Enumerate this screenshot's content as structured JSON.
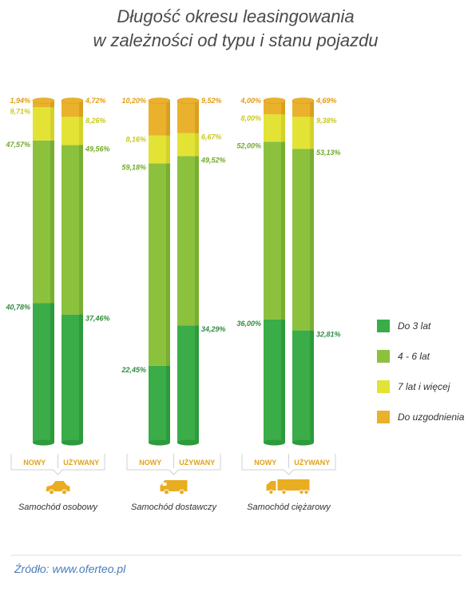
{
  "title_lines": [
    "Długość okresu leasingowania",
    "w zależności od typu i stanu pojazdu"
  ],
  "source": "Źródło: www.oferteo.pl",
  "colors": {
    "do3": "#3aac48",
    "do3_side": "#2d9a3b",
    "y46": "#8cc13e",
    "y46_side": "#78ae31",
    "y7": "#e3e335",
    "y7_side": "#d2d22a",
    "uzg": "#eab12c",
    "uzg_side": "#d99f1f",
    "pct_green": "#2e8c3c",
    "pct_light": "#6fa92a",
    "pct_yellow": "#c9c91a",
    "pct_orange": "#e39b12",
    "icon": "#e9ad22"
  },
  "chart_data": {
    "type": "bar",
    "stacked": true,
    "series": [
      {
        "name": "Do 3 lat",
        "color_key": "do3"
      },
      {
        "name": "4 - 6 lat",
        "color_key": "y46"
      },
      {
        "name": "7 lat i więcej",
        "color_key": "y7"
      },
      {
        "name": "Do uzgodnienia",
        "color_key": "uzg"
      }
    ],
    "groups": [
      {
        "label": "Samochód osobowy",
        "icon": "car-icon",
        "bars": [
          {
            "label": "NOWY",
            "values": [
              40.78,
              47.57,
              9.71,
              1.94
            ],
            "labels": [
              "40,78%",
              "47,57%",
              "9,71%",
              "1,94%"
            ]
          },
          {
            "label": "UŻYWANY",
            "values": [
              37.46,
              49.56,
              8.26,
              4.72
            ],
            "labels": [
              "37,46%",
              "49,56%",
              "8,26%",
              "4,72%"
            ]
          }
        ]
      },
      {
        "label": "Samochód dostawczy",
        "icon": "van-icon",
        "bars": [
          {
            "label": "NOWY",
            "values": [
              22.45,
              59.18,
              8.16,
              10.2
            ],
            "labels": [
              "22,45%",
              "59,18%",
              "8,16%",
              "10,20%"
            ]
          },
          {
            "label": "UŻYWANY",
            "values": [
              34.29,
              49.52,
              6.67,
              9.52
            ],
            "labels": [
              "34,29%",
              "49,52%",
              "6,67%",
              "9,52%"
            ]
          }
        ]
      },
      {
        "label": "Samochód ciężarowy",
        "icon": "truck-icon",
        "bars": [
          {
            "label": "NOWY",
            "values": [
              36.0,
              52.0,
              8.0,
              4.0
            ],
            "labels": [
              "36,00%",
              "52,00%",
              "8,00%",
              "4,00%"
            ]
          },
          {
            "label": "UŻYWANY",
            "values": [
              32.81,
              53.13,
              9.38,
              4.69
            ],
            "labels": [
              "32,81%",
              "53,13%",
              "9,38%",
              "4,69%"
            ]
          }
        ]
      }
    ],
    "legend_position": "right"
  }
}
